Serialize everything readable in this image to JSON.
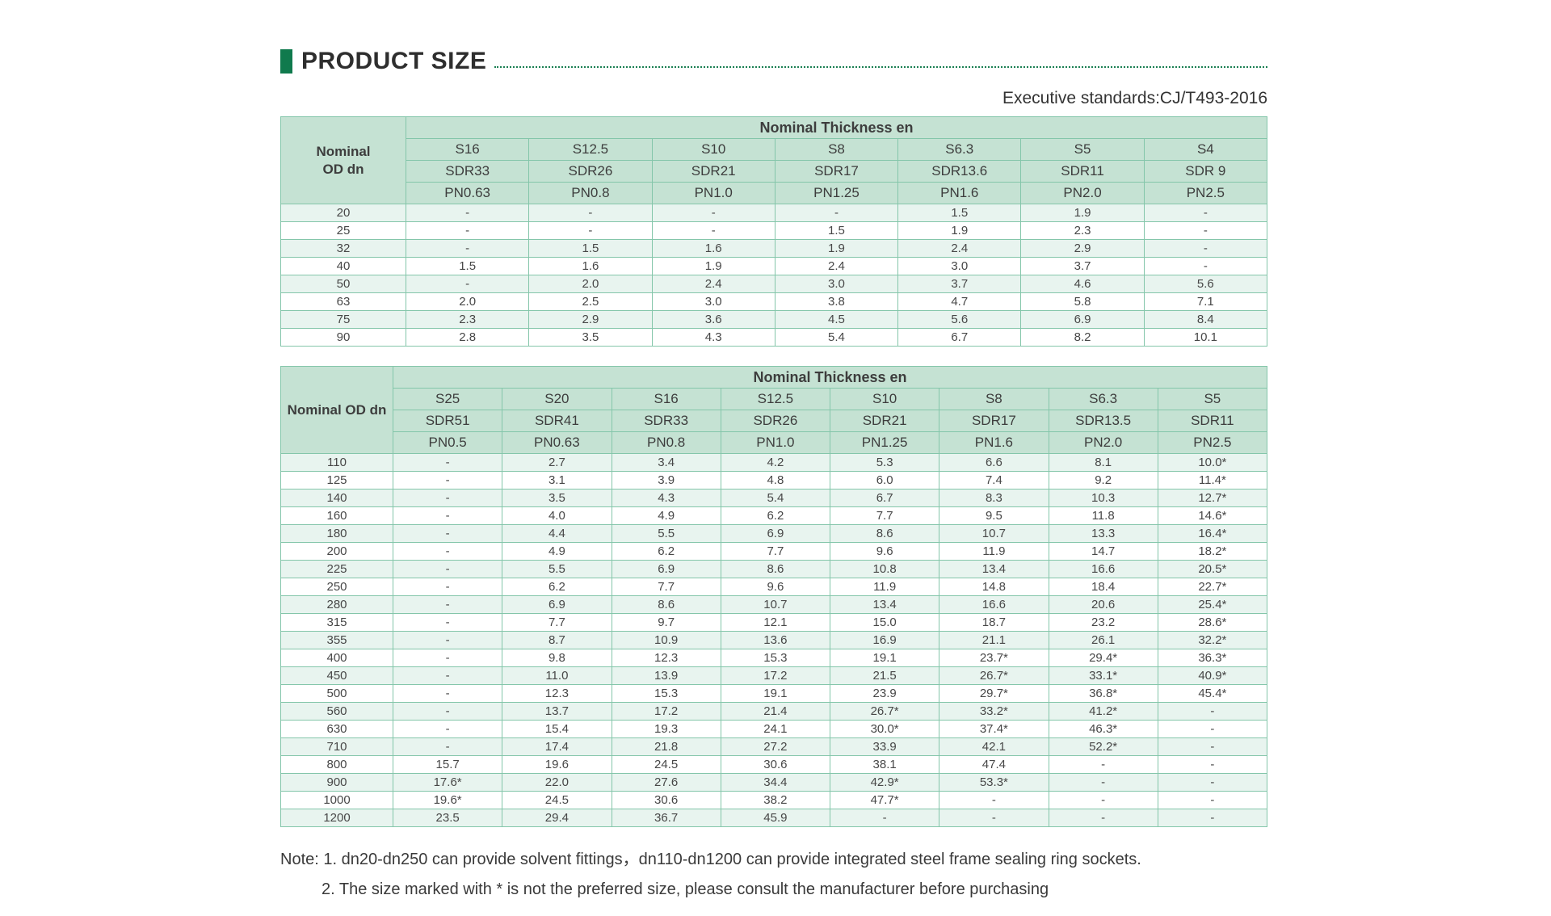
{
  "page": {
    "title": "PRODUCT SIZE",
    "standards": "Executive standards:CJ/T493-2016",
    "notes": [
      "Note: 1. dn20-dn250 can provide solvent fittings，dn110-dn1200 can provide integrated steel frame sealing ring sockets.",
      "2. The size marked with * is not the preferred size, please consult the manufacturer before purchasing"
    ]
  },
  "colors": {
    "accent_green": "#107a4d",
    "header_bg": "#c5e2d3",
    "row_alt_bg": "#e8f4ef",
    "border_green": "#84c6aa"
  },
  "tables": [
    {
      "corner_lines": [
        "Nominal",
        "OD dn"
      ],
      "group_header": "Nominal Thickness en",
      "columns": [
        {
          "s": "S16",
          "sdr": "SDR33",
          "pn": "PN0.63"
        },
        {
          "s": "S12.5",
          "sdr": "SDR26",
          "pn": "PN0.8"
        },
        {
          "s": "S10",
          "sdr": "SDR21",
          "pn": "PN1.0"
        },
        {
          "s": "S8",
          "sdr": "SDR17",
          "pn": "PN1.25"
        },
        {
          "s": "S6.3",
          "sdr": "SDR13.6",
          "pn": "PN1.6"
        },
        {
          "s": "S5",
          "sdr": "SDR11",
          "pn": "PN2.0"
        },
        {
          "s": "S4",
          "sdr": "SDR 9",
          "pn": "PN2.5"
        }
      ],
      "rows": [
        {
          "od": "20",
          "values": [
            "-",
            "-",
            "-",
            "-",
            "1.5",
            "1.9",
            "-"
          ]
        },
        {
          "od": "25",
          "values": [
            "-",
            "-",
            "-",
            "1.5",
            "1.9",
            "2.3",
            "-"
          ]
        },
        {
          "od": "32",
          "values": [
            "-",
            "1.5",
            "1.6",
            "1.9",
            "2.4",
            "2.9",
            "-"
          ]
        },
        {
          "od": "40",
          "values": [
            "1.5",
            "1.6",
            "1.9",
            "2.4",
            "3.0",
            "3.7",
            "-"
          ]
        },
        {
          "od": "50",
          "values": [
            "-",
            "2.0",
            "2.4",
            "3.0",
            "3.7",
            "4.6",
            "5.6"
          ]
        },
        {
          "od": "63",
          "values": [
            "2.0",
            "2.5",
            "3.0",
            "3.8",
            "4.7",
            "5.8",
            "7.1"
          ]
        },
        {
          "od": "75",
          "values": [
            "2.3",
            "2.9",
            "3.6",
            "4.5",
            "5.6",
            "6.9",
            "8.4"
          ]
        },
        {
          "od": "90",
          "values": [
            "2.8",
            "3.5",
            "4.3",
            "5.4",
            "6.7",
            "8.2",
            "10.1"
          ]
        }
      ]
    },
    {
      "corner_lines": [
        "Nominal OD dn"
      ],
      "group_header": "Nominal Thickness en",
      "columns": [
        {
          "s": "S25",
          "sdr": "SDR51",
          "pn": "PN0.5"
        },
        {
          "s": "S20",
          "sdr": "SDR41",
          "pn": "PN0.63"
        },
        {
          "s": "S16",
          "sdr": "SDR33",
          "pn": "PN0.8"
        },
        {
          "s": "S12.5",
          "sdr": "SDR26",
          "pn": "PN1.0"
        },
        {
          "s": "S10",
          "sdr": "SDR21",
          "pn": "PN1.25"
        },
        {
          "s": "S8",
          "sdr": "SDR17",
          "pn": "PN1.6"
        },
        {
          "s": "S6.3",
          "sdr": "SDR13.5",
          "pn": "PN2.0"
        },
        {
          "s": "S5",
          "sdr": "SDR11",
          "pn": "PN2.5"
        }
      ],
      "rows": [
        {
          "od": "110",
          "values": [
            "-",
            "2.7",
            "3.4",
            "4.2",
            "5.3",
            "6.6",
            "8.1",
            "10.0*"
          ]
        },
        {
          "od": "125",
          "values": [
            "-",
            "3.1",
            "3.9",
            "4.8",
            "6.0",
            "7.4",
            "9.2",
            "11.4*"
          ]
        },
        {
          "od": "140",
          "values": [
            "-",
            "3.5",
            "4.3",
            "5.4",
            "6.7",
            "8.3",
            "10.3",
            "12.7*"
          ]
        },
        {
          "od": "160",
          "values": [
            "-",
            "4.0",
            "4.9",
            "6.2",
            "7.7",
            "9.5",
            "11.8",
            "14.6*"
          ]
        },
        {
          "od": "180",
          "values": [
            "-",
            "4.4",
            "5.5",
            "6.9",
            "8.6",
            "10.7",
            "13.3",
            "16.4*"
          ]
        },
        {
          "od": "200",
          "values": [
            "-",
            "4.9",
            "6.2",
            "7.7",
            "9.6",
            "11.9",
            "14.7",
            "18.2*"
          ]
        },
        {
          "od": "225",
          "values": [
            "-",
            "5.5",
            "6.9",
            "8.6",
            "10.8",
            "13.4",
            "16.6",
            "20.5*"
          ]
        },
        {
          "od": "250",
          "values": [
            "-",
            "6.2",
            "7.7",
            "9.6",
            "11.9",
            "14.8",
            "18.4",
            "22.7*"
          ]
        },
        {
          "od": "280",
          "values": [
            "-",
            "6.9",
            "8.6",
            "10.7",
            "13.4",
            "16.6",
            "20.6",
            "25.4*"
          ]
        },
        {
          "od": "315",
          "values": [
            "-",
            "7.7",
            "9.7",
            "12.1",
            "15.0",
            "18.7",
            "23.2",
            "28.6*"
          ]
        },
        {
          "od": "355",
          "values": [
            "-",
            "8.7",
            "10.9",
            "13.6",
            "16.9",
            "21.1",
            "26.1",
            "32.2*"
          ]
        },
        {
          "od": "400",
          "values": [
            "-",
            "9.8",
            "12.3",
            "15.3",
            "19.1",
            "23.7*",
            "29.4*",
            "36.3*"
          ]
        },
        {
          "od": "450",
          "values": [
            "-",
            "11.0",
            "13.9",
            "17.2",
            "21.5",
            "26.7*",
            "33.1*",
            "40.9*"
          ]
        },
        {
          "od": "500",
          "values": [
            "-",
            "12.3",
            "15.3",
            "19.1",
            "23.9",
            "29.7*",
            "36.8*",
            "45.4*"
          ]
        },
        {
          "od": "560",
          "values": [
            "-",
            "13.7",
            "17.2",
            "21.4",
            "26.7*",
            "33.2*",
            "41.2*",
            "-"
          ]
        },
        {
          "od": "630",
          "values": [
            "-",
            "15.4",
            "19.3",
            "24.1",
            "30.0*",
            "37.4*",
            "46.3*",
            "-"
          ]
        },
        {
          "od": "710",
          "values": [
            "-",
            "17.4",
            "21.8",
            "27.2",
            "33.9",
            "42.1",
            "52.2*",
            "-"
          ]
        },
        {
          "od": "800",
          "values": [
            "15.7",
            "19.6",
            "24.5",
            "30.6",
            "38.1",
            "47.4",
            "-",
            "-"
          ]
        },
        {
          "od": "900",
          "values": [
            "17.6*",
            "22.0",
            "27.6",
            "34.4",
            "42.9*",
            "53.3*",
            "-",
            "-"
          ]
        },
        {
          "od": "1000",
          "values": [
            "19.6*",
            "24.5",
            "30.6",
            "38.2",
            "47.7*",
            "-",
            "-",
            "-"
          ]
        },
        {
          "od": "1200",
          "values": [
            "23.5",
            "29.4",
            "36.7",
            "45.9",
            "-",
            "-",
            "-",
            "-"
          ]
        }
      ]
    }
  ]
}
